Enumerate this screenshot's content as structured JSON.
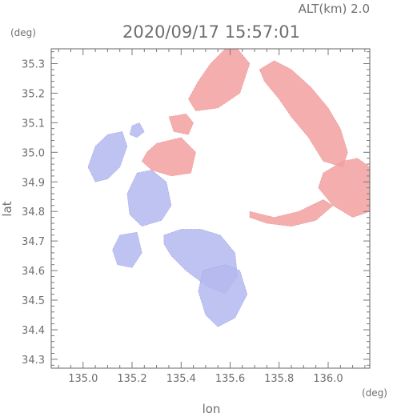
{
  "header": {
    "alt_label": "ALT(km)  2.0",
    "timestamp": "2020/09/17 15:57:01"
  },
  "chart_data": {
    "type": "heatmap",
    "title": "2020/09/17 15:57:01",
    "subtitle": "ALT(km)  2.0",
    "xlabel": "lon",
    "ylabel": "lat",
    "x_unit": "(deg)",
    "y_unit": "(deg)",
    "xlim": [
      134.87,
      136.17
    ],
    "ylim": [
      34.27,
      35.35
    ],
    "x_ticks": [
      135.0,
      135.2,
      135.4,
      135.6,
      135.8,
      136.0
    ],
    "x_tick_labels": [
      "135.0",
      "135.2",
      "135.4",
      "135.6",
      "135.8",
      "136.0"
    ],
    "y_ticks": [
      34.3,
      34.4,
      34.5,
      34.6,
      34.7,
      34.8,
      34.9,
      35.0,
      35.1,
      35.2,
      35.3
    ],
    "y_tick_labels": [
      "34.3",
      "34.4",
      "34.5",
      "34.6",
      "34.7",
      "34.8",
      "34.9",
      "35.0",
      "35.1",
      "35.2",
      "35.3"
    ],
    "grid": false,
    "colors": {
      "positive": "#f2a0a0",
      "negative": "#b4b8ee",
      "frame": "#666666"
    },
    "regions": [
      {
        "sign": "positive",
        "lon": [
          135.58,
          135.52,
          135.47,
          135.43,
          135.46,
          135.55,
          135.64,
          135.68,
          135.63
        ],
        "lat": [
          35.35,
          35.3,
          35.24,
          35.18,
          35.14,
          35.15,
          35.2,
          35.3,
          35.35
        ]
      },
      {
        "sign": "positive",
        "lon": [
          135.72,
          135.78,
          135.85,
          135.93,
          136.0,
          136.05,
          136.08,
          136.06,
          135.98,
          135.92,
          135.85,
          135.8,
          135.74
        ],
        "lat": [
          35.28,
          35.31,
          35.28,
          35.22,
          35.15,
          35.08,
          35.0,
          34.95,
          34.97,
          35.05,
          35.12,
          35.18,
          35.24
        ]
      },
      {
        "sign": "positive",
        "lon": [
          135.98,
          136.06,
          136.12,
          136.17,
          136.17,
          136.1,
          136.02,
          135.96
        ],
        "lat": [
          34.93,
          34.97,
          34.98,
          34.95,
          34.8,
          34.78,
          34.82,
          34.88
        ]
      },
      {
        "sign": "positive",
        "lon": [
          135.68,
          135.78,
          135.88,
          135.98,
          136.02,
          135.95,
          135.85,
          135.75,
          135.68
        ],
        "lat": [
          34.8,
          34.78,
          34.8,
          34.84,
          34.82,
          34.77,
          34.75,
          34.76,
          34.78
        ]
      },
      {
        "sign": "positive",
        "lon": [
          135.26,
          135.3,
          135.4,
          135.46,
          135.44,
          135.36,
          135.28,
          135.24
        ],
        "lat": [
          35.0,
          35.03,
          35.05,
          35.0,
          34.93,
          34.92,
          34.94,
          34.97
        ]
      },
      {
        "sign": "positive",
        "lon": [
          135.35,
          135.42,
          135.45,
          135.43,
          135.37
        ],
        "lat": [
          35.12,
          35.13,
          35.1,
          35.06,
          35.07
        ]
      },
      {
        "sign": "negative",
        "lon": [
          135.05,
          135.1,
          135.16,
          135.18,
          135.15,
          135.1,
          135.05,
          135.02
        ],
        "lat": [
          35.02,
          35.06,
          35.07,
          35.02,
          34.95,
          34.91,
          34.9,
          34.95
        ]
      },
      {
        "sign": "negative",
        "lon": [
          135.22,
          135.28,
          135.34,
          135.36,
          135.32,
          135.24,
          135.19,
          135.18
        ],
        "lat": [
          34.93,
          34.94,
          34.9,
          34.82,
          34.77,
          34.75,
          34.79,
          34.86
        ]
      },
      {
        "sign": "negative",
        "lon": [
          135.33,
          135.4,
          135.48,
          135.56,
          135.62,
          135.63,
          135.58,
          135.5,
          135.42,
          135.36,
          135.33
        ],
        "lat": [
          34.72,
          34.74,
          34.74,
          34.72,
          34.66,
          34.58,
          34.52,
          34.55,
          34.6,
          34.65,
          34.69
        ]
      },
      {
        "sign": "negative",
        "lon": [
          135.15,
          135.22,
          135.24,
          135.2,
          135.14,
          135.12
        ],
        "lat": [
          34.72,
          34.73,
          34.66,
          34.61,
          34.62,
          34.67
        ]
      },
      {
        "sign": "negative",
        "lon": [
          135.49,
          135.58,
          135.64,
          135.67,
          135.62,
          135.55,
          135.5,
          135.47
        ],
        "lat": [
          34.6,
          34.62,
          34.6,
          34.52,
          34.44,
          34.41,
          34.45,
          34.53
        ]
      },
      {
        "sign": "negative",
        "lon": [
          135.2,
          135.23,
          135.25,
          135.22,
          135.19
        ],
        "lat": [
          35.09,
          35.1,
          35.07,
          35.05,
          35.06
        ]
      }
    ]
  }
}
